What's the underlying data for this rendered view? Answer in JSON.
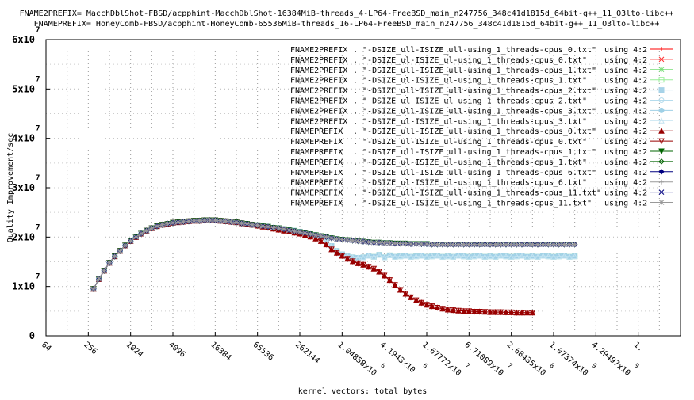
{
  "chart_data": {
    "type": "line",
    "title_lines": [
      "FNAME2PREFIX= MacchDblShot-FBSD/acpphint-MacchDblShot-16384MiB-threads_4-LP64-FreeBSD_main_n247756_348c41d1815d_64bit-g++_11_O3lto-libc++",
      "FNAMEPREFIX= HoneyComb-FBSD/acpphint-HoneyComb-65536MiB-threads_16-LP64-FreeBSD_main_n247756_348c41d1815d_64bit-g++_11_O3lto-libc++"
    ],
    "xlabel": "kernel vectors: total bytes",
    "ylabel": "Quality Improvement/sec",
    "x_scale": "log2",
    "xlim": [
      64,
      68719476736
    ],
    "ylim": [
      0,
      60000000
    ],
    "grid": true,
    "legend_position": "top-right",
    "x_ticks": [
      {
        "value": 64,
        "label": "64",
        "sup": ""
      },
      {
        "value": 256,
        "label": "256",
        "sup": ""
      },
      {
        "value": 1024,
        "label": "1024",
        "sup": ""
      },
      {
        "value": 4096,
        "label": "4096",
        "sup": ""
      },
      {
        "value": 16384,
        "label": "16384",
        "sup": ""
      },
      {
        "value": 65536,
        "label": "65536",
        "sup": ""
      },
      {
        "value": 262144,
        "label": "262144",
        "sup": ""
      },
      {
        "value": 1048576,
        "label": "1.04858x10",
        "sup": "6"
      },
      {
        "value": 4194304,
        "label": "4.1943x10",
        "sup": "6"
      },
      {
        "value": 16777216,
        "label": "1.67772x10",
        "sup": "7"
      },
      {
        "value": 67108864,
        "label": "6.71089x10",
        "sup": "7"
      },
      {
        "value": 268435456,
        "label": "2.68435x10",
        "sup": "8"
      },
      {
        "value": 1073741824,
        "label": "1.07374x10",
        "sup": "9"
      },
      {
        "value": 4294967296,
        "label": "4.29497x10",
        "sup": "9"
      },
      {
        "value": 17179869184,
        "label": "1.",
        "sup": ""
      }
    ],
    "y_ticks": [
      {
        "value": 0,
        "label": "0",
        "sup": ""
      },
      {
        "value": 10000000,
        "label": "1x10",
        "sup": "7"
      },
      {
        "value": 20000000,
        "label": "2x10",
        "sup": "7"
      },
      {
        "value": 30000000,
        "label": "3x10",
        "sup": "7"
      },
      {
        "value": 40000000,
        "label": "4x10",
        "sup": "7"
      },
      {
        "value": 50000000,
        "label": "5x10",
        "sup": "7"
      },
      {
        "value": 60000000,
        "label": "6x10",
        "sup": "7"
      }
    ],
    "series": [
      {
        "prefix": "FNAME2PREFIX",
        "file": ". \"-DSIZE_ull-ISIZE_ull-using_1_threads-cpus_0.txt\"",
        "using": "using 4:2",
        "color": "#ff0000",
        "marker": "plus",
        "profile": "A"
      },
      {
        "prefix": "FNAME2PREFIX",
        "file": ". \"-DSIZE_ul-ISIZE_ul-using_1_threads-cpus_0.txt\"",
        "using": "using 4:2",
        "color": "#ff3333",
        "marker": "cross",
        "profile": "A"
      },
      {
        "prefix": "FNAME2PREFIX",
        "file": ". \"-DSIZE_ull-ISIZE_ull-using_1_threads-cpus_1.txt\"",
        "using": "using 4:2",
        "color": "#77dd77",
        "marker": "star",
        "profile": "A"
      },
      {
        "prefix": "FNAME2PREFIX",
        "file": ". \"-DSIZE_ul-ISIZE_ul-using_1_threads-cpus_1.txt\"",
        "using": "using 4:2",
        "color": "#99ee99",
        "marker": "square",
        "profile": "A"
      },
      {
        "prefix": "FNAME2PREFIX",
        "file": ". \"-DSIZE_ull-ISIZE_ull-using_1_threads-cpus_2.txt\"",
        "using": "using 4:2",
        "color": "#a7d3e8",
        "marker": "square-filled",
        "profile": "A"
      },
      {
        "prefix": "FNAME2PREFIX",
        "file": ". \"-DSIZE_ul-ISIZE_ul-using_1_threads-cpus_2.txt\"",
        "using": "using 4:2",
        "color": "#b5dced",
        "marker": "circle",
        "profile": "A"
      },
      {
        "prefix": "FNAME2PREFIX",
        "file": ". \"-DSIZE_ull-ISIZE_ull-using_1_threads-cpus_3.txt\"",
        "using": "using 4:2",
        "color": "#9fd0e6",
        "marker": "circle-filled",
        "profile": "A"
      },
      {
        "prefix": "FNAME2PREFIX",
        "file": ". \"-DSIZE_ul-ISIZE_ul-using_1_threads-cpus_3.txt\"",
        "using": "using 4:2",
        "color": "#c3e3f1",
        "marker": "triangle",
        "profile": "A"
      },
      {
        "prefix": "FNAMEPREFIX",
        "file": ". \"-DSIZE_ull-ISIZE_ull-using_1_threads-cpus_0.txt\"",
        "using": "using 4:2",
        "color": "#990000",
        "marker": "triangle-filled",
        "profile": "B"
      },
      {
        "prefix": "FNAMEPREFIX",
        "file": ". \"-DSIZE_ul-ISIZE_ul-using_1_threads-cpus_0.txt\"",
        "using": "using 4:2",
        "color": "#990000",
        "marker": "triangle-down",
        "profile": "B"
      },
      {
        "prefix": "FNAMEPREFIX",
        "file": ". \"-DSIZE_ull-ISIZE_ull-using_1_threads-cpus_1.txt\"",
        "using": "using 4:2",
        "color": "#006400",
        "marker": "triangle-down-filled",
        "profile": "C"
      },
      {
        "prefix": "FNAMEPREFIX",
        "file": ". \"-DSIZE_ul-ISIZE_ul-using_1_threads-cpus_1.txt\"",
        "using": "using 4:2",
        "color": "#006400",
        "marker": "diamond",
        "profile": "C"
      },
      {
        "prefix": "FNAMEPREFIX",
        "file": ". \"-DSIZE_ull-ISIZE_ull-using_1_threads-cpus_6.txt\"",
        "using": "using 4:2",
        "color": "#000080",
        "marker": "diamond-filled",
        "profile": "C"
      },
      {
        "prefix": "FNAMEPREFIX",
        "file": ". \"-DSIZE_ul-ISIZE_ul-using_1_threads-cpus_6.txt\"",
        "using": "using 4:2",
        "color": "#999999",
        "marker": "plus",
        "profile": "C"
      },
      {
        "prefix": "FNAMEPREFIX",
        "file": ". \"-DSIZE_ull-ISIZE_ull-using_1_threads-cpus_11.txt\"",
        "using": "using 4:2",
        "color": "#000080",
        "marker": "cross",
        "profile": "C"
      },
      {
        "prefix": "FNAMEPREFIX",
        "file": ". \"-DSIZE_ul-ISIZE_ul-using_1_threads-cpus_11.txt\"",
        "using": "using 4:2",
        "color": "#999999",
        "marker": "star",
        "profile": "C"
      }
    ],
    "profiles": {
      "A": {
        "x": [
          304,
          362,
          431,
          512,
          609,
          724,
          861,
          1024,
          1218,
          1448,
          1722,
          2048,
          2435,
          2896,
          3444,
          4096,
          4871,
          5793,
          6889,
          8192,
          9742,
          11585,
          13777,
          16384,
          19484,
          23170,
          27554,
          32768,
          38968,
          46341,
          55109,
          65536,
          77936,
          92682,
          110218,
          131072,
          155872,
          185364,
          220436,
          262144,
          311744,
          370728,
          440872,
          524288,
          623487,
          741455,
          881744,
          1048576,
          1246974,
          1482910,
          1763488,
          2097152,
          2493948,
          2965821,
          3526975,
          4194304,
          4987896,
          5931642,
          7053950,
          8388608,
          9975792,
          11863283,
          14107901,
          16777216,
          19951584,
          23726566,
          28215802,
          33554432,
          39903168,
          47453132,
          56431603,
          67108864,
          79806335,
          94906265,
          112863206,
          134217728,
          159612670,
          189812531,
          225726413,
          268435456,
          319225340,
          379625062,
          451452825,
          536870912,
          638450681,
          759250125,
          902905651,
          1073741824,
          1276901362,
          1518500250,
          1805811301,
          2147483648
        ],
        "y": [
          9500000.0,
          11500000.0,
          13200000.0,
          14800000.0,
          16100000.0,
          17200000.0,
          18300000.0,
          19200000.0,
          20000000.0,
          20700000.0,
          21300000.0,
          21800000.0,
          22200000.0,
          22500000.0,
          22700000.0,
          22900000.0,
          23000000.0,
          23100000.0,
          23200000.0,
          23300000.0,
          23300000.0,
          23400000.0,
          23400000.0,
          23400000.0,
          23300000.0,
          23200000.0,
          23100000.0,
          23000000.0,
          22800000.0,
          22700000.0,
          22500000.0,
          22400000.0,
          22200000.0,
          22100000.0,
          21900000.0,
          21800000.0,
          21600000.0,
          21500000.0,
          21300000.0,
          21100000.0,
          20900000.0,
          20600000.0,
          20400000.0,
          20000000.0,
          19300000.0,
          18200000.0,
          17200000.0,
          16500000.0,
          16100000.0,
          15900000.0,
          15800000.0,
          15900000.0,
          16200000.0,
          16000000.0,
          16400000.0,
          15900000.0,
          16300000.0,
          16000000.0,
          16100000.0,
          16200000.0,
          16000000.0,
          16100000.0,
          16200000.0,
          16000000.0,
          16100000.0,
          16200000.0,
          16000000.0,
          16100000.0,
          16000000.0,
          16200000.0,
          16100000.0,
          16000000.0,
          16100000.0,
          16200000.0,
          16000000.0,
          16100000.0,
          16000000.0,
          16200000.0,
          16100000.0,
          16000000.0,
          16100000.0,
          16200000.0,
          16000000.0,
          16100000.0,
          16000000.0,
          16200000.0,
          16100000.0,
          16000000.0,
          16100000.0,
          16200000.0,
          16000000.0,
          16100000.0
        ]
      },
      "B": {
        "x": [
          304,
          362,
          431,
          512,
          609,
          724,
          861,
          1024,
          1218,
          1448,
          1722,
          2048,
          2435,
          2896,
          3444,
          4096,
          4871,
          5793,
          6889,
          8192,
          9742,
          11585,
          13777,
          16384,
          19484,
          23170,
          27554,
          32768,
          38968,
          46341,
          55109,
          65536,
          77936,
          92682,
          110218,
          131072,
          155872,
          185364,
          220436,
          262144,
          311744,
          370728,
          440872,
          524288,
          623487,
          741455,
          881744,
          1048576,
          1246974,
          1482910,
          1763488,
          2097152,
          2493948,
          2965821,
          3526975,
          4194304,
          4987896,
          5931642,
          7053950,
          8388608,
          9975792,
          11863283,
          14107901,
          16777216,
          19951584,
          23726566,
          28215802,
          33554432,
          39903168,
          47453132,
          56431603,
          67108864,
          79806335,
          94906265,
          112863206,
          134217728,
          159612670,
          189812531,
          225726413,
          268435456,
          319225340,
          379625062,
          451452825,
          536870912
        ],
        "y": [
          9500000.0,
          11500000.0,
          13200000.0,
          14800000.0,
          16100000.0,
          17200000.0,
          18300000.0,
          19200000.0,
          20000000.0,
          20700000.0,
          21300000.0,
          21800000.0,
          22200000.0,
          22500000.0,
          22700000.0,
          22900000.0,
          23000000.0,
          23100000.0,
          23200000.0,
          23300000.0,
          23300000.0,
          23400000.0,
          23400000.0,
          23400000.0,
          23300000.0,
          23200000.0,
          23100000.0,
          23000000.0,
          22800000.0,
          22700000.0,
          22500000.0,
          22300000.0,
          22100000.0,
          21900000.0,
          21700000.0,
          21500000.0,
          21300000.0,
          21100000.0,
          20900000.0,
          20700000.0,
          20400000.0,
          20100000.0,
          19700000.0,
          19200000.0,
          18500000.0,
          17500000.0,
          16800000.0,
          16200000.0,
          15600000.0,
          15100000.0,
          14700000.0,
          14400000.0,
          14000000.0,
          13600000.0,
          13000000.0,
          12200000.0,
          11300000.0,
          10300000.0,
          9300000.0,
          8500000.0,
          7800000.0,
          7200000.0,
          6700000.0,
          6300000.0,
          6000000.0,
          5700000.0,
          5500000.0,
          5300000.0,
          5200000.0,
          5100000.0,
          5000000.0,
          5000000.0,
          4900000.0,
          4900000.0,
          4850000.0,
          4800000.0,
          4800000.0,
          4800000.0,
          4750000.0,
          4750000.0,
          4700000.0,
          4700000.0,
          4700000.0,
          4700000.0
        ]
      },
      "C": {
        "x": [
          304,
          362,
          431,
          512,
          609,
          724,
          861,
          1024,
          1218,
          1448,
          1722,
          2048,
          2435,
          2896,
          3444,
          4096,
          4871,
          5793,
          6889,
          8192,
          9742,
          11585,
          13777,
          16384,
          19484,
          23170,
          27554,
          32768,
          38968,
          46341,
          55109,
          65536,
          77936,
          92682,
          110218,
          131072,
          155872,
          185364,
          220436,
          262144,
          311744,
          370728,
          440872,
          524288,
          623487,
          741455,
          881744,
          1048576,
          1246974,
          1482910,
          1763488,
          2097152,
          2493948,
          2965821,
          3526975,
          4194304,
          4987896,
          5931642,
          7053950,
          8388608,
          9975792,
          11863283,
          14107901,
          16777216,
          19951584,
          23726566,
          28215802,
          33554432,
          39903168,
          47453132,
          56431603,
          67108864,
          79806335,
          94906265,
          112863206,
          134217728,
          159612670,
          189812531,
          225726413,
          268435456,
          319225340,
          379625062,
          451452825,
          536870912,
          638450681,
          759250125,
          902905651,
          1073741824,
          1276901362,
          1518500250,
          1805811301,
          2147483648
        ],
        "y": [
          9500000.0,
          11500000.0,
          13200000.0,
          14800000.0,
          16100000.0,
          17200000.0,
          18300000.0,
          19200000.0,
          20000000.0,
          20700000.0,
          21300000.0,
          21800000.0,
          22200000.0,
          22500000.0,
          22700000.0,
          22900000.0,
          23000000.0,
          23100000.0,
          23200000.0,
          23300000.0,
          23300000.0,
          23400000.0,
          23400000.0,
          23400000.0,
          23300000.0,
          23200000.0,
          23100000.0,
          23000000.0,
          22800000.0,
          22700000.0,
          22500000.0,
          22400000.0,
          22200000.0,
          22100000.0,
          21900000.0,
          21800000.0,
          21600000.0,
          21400000.0,
          21200000.0,
          21000000.0,
          20800000.0,
          20600000.0,
          20400000.0,
          20200000.0,
          20000000.0,
          19800000.0,
          19600000.0,
          19500000.0,
          19400000.0,
          19300000.0,
          19200000.0,
          19100000.0,
          19000000.0,
          18900000.0,
          18900000.0,
          18800000.0,
          18800000.0,
          18700000.0,
          18700000.0,
          18700000.0,
          18600000.0,
          18600000.0,
          18600000.0,
          18600000.0,
          18500000.0,
          18500000.0,
          18500000.0,
          18500000.0,
          18500000.0,
          18500000.0,
          18500000.0,
          18500000.0,
          18500000.0,
          18500000.0,
          18500000.0,
          18500000.0,
          18500000.0,
          18500000.0,
          18500000.0,
          18500000.0,
          18500000.0,
          18500000.0,
          18500000.0,
          18500000.0,
          18500000.0,
          18500000.0,
          18500000.0,
          18500000.0,
          18500000.0,
          18500000.0,
          18500000.0,
          18500000.0
        ]
      }
    }
  }
}
